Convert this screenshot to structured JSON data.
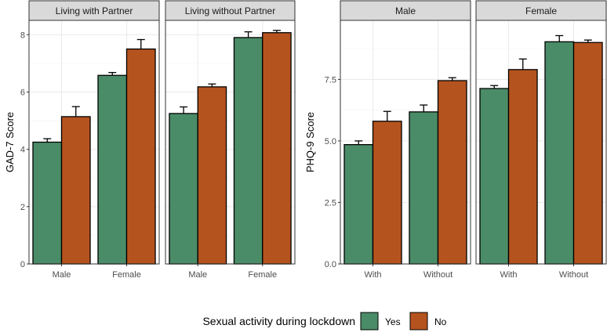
{
  "chart_data": [
    {
      "type": "bar",
      "ylabel": "GAD-7 Score",
      "ylim": [
        0,
        8.5
      ],
      "yticks": [
        0,
        2,
        4,
        6,
        8
      ],
      "panels": [
        {
          "strip": "Living with Partner",
          "categories": [
            "Male",
            "Female"
          ],
          "series": [
            {
              "name": "Yes",
              "values": [
                4.25,
                6.58
              ],
              "errors": [
                0.12,
                0.1
              ]
            },
            {
              "name": "No",
              "values": [
                5.14,
                7.5
              ],
              "errors": [
                0.35,
                0.33
              ]
            }
          ]
        },
        {
          "strip": "Living without Partner",
          "categories": [
            "Male",
            "Female"
          ],
          "series": [
            {
              "name": "Yes",
              "values": [
                5.25,
                7.9
              ],
              "errors": [
                0.23,
                0.2
              ]
            },
            {
              "name": "No",
              "values": [
                6.18,
                8.07
              ],
              "errors": [
                0.1,
                0.08
              ]
            }
          ]
        }
      ]
    },
    {
      "type": "bar",
      "ylabel": "PHQ-9 Score",
      "ylim": [
        0,
        9.9
      ],
      "yticks": [
        0.0,
        2.5,
        5.0,
        7.5
      ],
      "panels": [
        {
          "strip": "Male",
          "categories": [
            "With",
            "Without"
          ],
          "series": [
            {
              "name": "Yes",
              "values": [
                4.85,
                6.18
              ],
              "errors": [
                0.15,
                0.28
              ]
            },
            {
              "name": "No",
              "values": [
                5.8,
                7.45
              ],
              "errors": [
                0.4,
                0.12
              ]
            }
          ]
        },
        {
          "strip": "Female",
          "categories": [
            "With",
            "Without"
          ],
          "series": [
            {
              "name": "Yes",
              "values": [
                7.13,
                9.03
              ],
              "errors": [
                0.12,
                0.25
              ]
            },
            {
              "name": "No",
              "values": [
                7.9,
                9.0
              ],
              "errors": [
                0.43,
                0.1
              ]
            }
          ]
        }
      ]
    }
  ],
  "legend": {
    "title": "Sexual activity during lockdown",
    "items": [
      {
        "label": "Yes",
        "color": "#4a8c67"
      },
      {
        "label": "No",
        "color": "#b5531f"
      }
    ]
  },
  "colors": {
    "strip_fill": "#d9d9d9",
    "grid_major": "#ebebeb",
    "grid_minor": "#f5f5f5",
    "frame": "#333333"
  }
}
